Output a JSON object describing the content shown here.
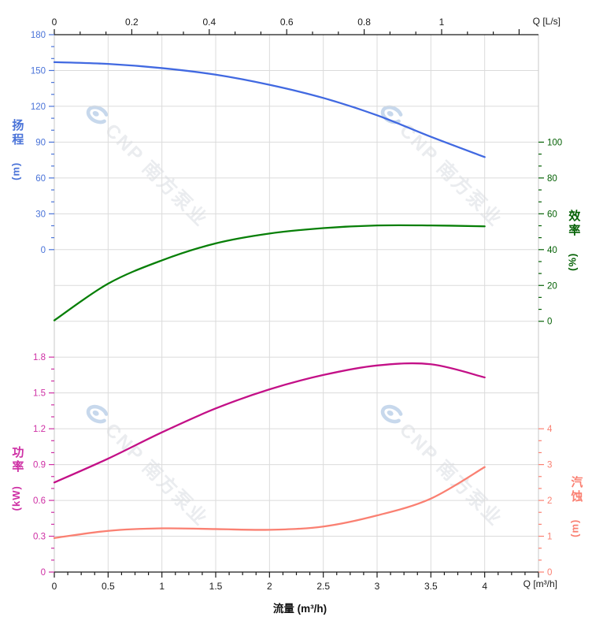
{
  "watermark": {
    "text": "CNP 南方泵业"
  },
  "colors": {
    "head": "#4169E1",
    "head_label": "#4A73D8",
    "efficiency": "#077F07",
    "efficiency_label": "#056105",
    "power": "#C31087",
    "power_label": "#CE2FA4",
    "npsh": "#FA8072",
    "npsh_label": "#FA8072",
    "axis_black": "#1A1A1A",
    "grid": "#DBDBDB",
    "side_spine": "#C9C9C9",
    "watermark_text": "#EAECEF",
    "watermark_logo": "#C7D8EC"
  },
  "chart_data": {
    "type": "line",
    "title": "",
    "x": [
      0,
      0.5,
      1,
      1.5,
      2,
      2.5,
      3,
      3.5,
      4
    ],
    "series": [
      {
        "key": "head",
        "name": "扬程",
        "unit": "(m)",
        "axis": "y_head",
        "values": [
          157,
          155.5,
          152,
          146.5,
          138,
          127,
          112.5,
          94.5,
          77.5
        ]
      },
      {
        "key": "efficiency",
        "name": "效率",
        "unit": "(%)",
        "axis": "y_eff",
        "values": [
          0.5,
          21,
          34,
          43.5,
          49,
          52,
          53.5,
          53.5,
          53
        ]
      },
      {
        "key": "power",
        "name": "功率",
        "unit": "(kW)",
        "axis": "y_power",
        "values": [
          0.75,
          0.95,
          1.17,
          1.37,
          1.53,
          1.65,
          1.73,
          1.74,
          1.63
        ]
      },
      {
        "key": "npsh",
        "name": "汽蚀",
        "unit": "(m)",
        "axis": "y_npsh",
        "values": [
          0.95,
          1.15,
          1.22,
          1.2,
          1.18,
          1.27,
          1.58,
          2.05,
          2.93
        ]
      }
    ],
    "axes": {
      "x_bottom": {
        "title": "流量 (m³/h)",
        "corner_label": "Q [m³/h]",
        "tick_values": [
          0,
          0.5,
          1,
          1.5,
          2,
          2.5,
          3,
          3.5,
          4
        ],
        "range": [
          0,
          4.5
        ],
        "minor_per_major": 4,
        "major_step": 0.5,
        "label_max": 4
      },
      "x_top": {
        "corner_label": "Q [L/s]",
        "tick_values": [
          0,
          0.2,
          0.4,
          0.6,
          0.8,
          1
        ],
        "range": [
          0,
          1.25
        ],
        "minor_per_major": 3,
        "major_step": 0.2,
        "label_max": 1
      },
      "y_head": {
        "title": "扬程",
        "unit": "(m)",
        "tick_values": [
          180,
          150,
          120,
          90,
          60,
          30,
          0
        ],
        "major_step": 30,
        "minor_per_major": 3,
        "top_value": 180
      },
      "y_eff": {
        "title": "效率",
        "unit": "(%)",
        "tick_values": [
          100,
          80,
          60,
          40,
          20,
          0
        ],
        "major_step": 20,
        "minor_per_major": 3,
        "top_value": 100
      },
      "y_power": {
        "title": "功率",
        "unit": "(kW)",
        "tick_values": [
          1.8,
          1.5,
          1.2,
          0.9,
          0.6,
          0.3,
          0
        ],
        "major_step": 0.3,
        "minor_per_major": 3,
        "top_value": 1.8
      },
      "y_npsh": {
        "title": "汽蚀",
        "unit": "(m)",
        "tick_values": [
          4,
          3,
          2,
          1,
          0
        ],
        "major_step": 1,
        "minor_per_major": 3,
        "top_value": 4
      }
    },
    "grid": true,
    "legend": "none"
  }
}
